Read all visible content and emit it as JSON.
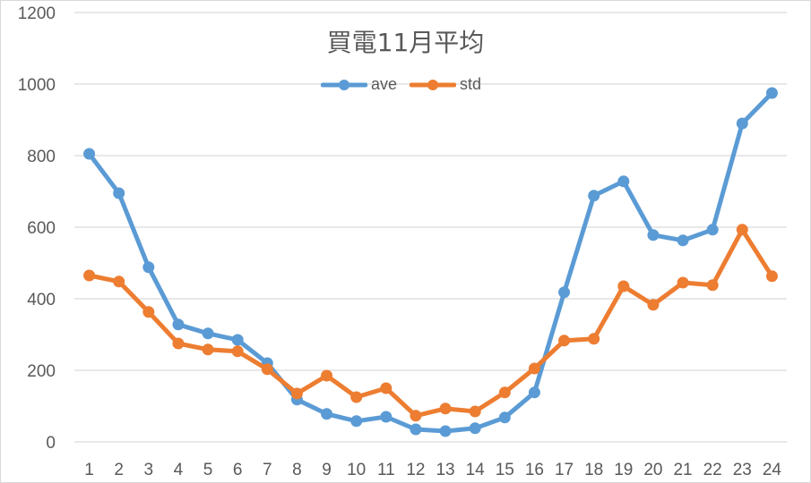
{
  "chart_data": {
    "type": "line",
    "title": "買電11月平均",
    "xlabel": "",
    "ylabel": "",
    "x": [
      1,
      2,
      3,
      4,
      5,
      6,
      7,
      8,
      9,
      10,
      11,
      12,
      13,
      14,
      15,
      16,
      17,
      18,
      19,
      20,
      21,
      22,
      23,
      24
    ],
    "categories": [
      "1",
      "2",
      "3",
      "4",
      "5",
      "6",
      "7",
      "8",
      "9",
      "10",
      "11",
      "12",
      "13",
      "14",
      "15",
      "16",
      "17",
      "18",
      "19",
      "20",
      "21",
      "22",
      "23",
      "24"
    ],
    "series": [
      {
        "name": "ave",
        "color": "#5b9bd5",
        "values": [
          805,
          695,
          488,
          328,
          303,
          285,
          220,
          118,
          78,
          58,
          70,
          35,
          30,
          38,
          68,
          138,
          418,
          688,
          728,
          578,
          563,
          593,
          890,
          975
        ]
      },
      {
        "name": "std",
        "color": "#ed7d31",
        "values": [
          465,
          448,
          363,
          275,
          258,
          253,
          203,
          135,
          185,
          125,
          150,
          73,
          93,
          85,
          138,
          205,
          283,
          288,
          435,
          383,
          445,
          438,
          593,
          463
        ]
      }
    ],
    "ylim": [
      0,
      1200
    ],
    "yticks": [
      0,
      200,
      400,
      600,
      800,
      1000,
      1200
    ],
    "grid": true,
    "legend_position": "top"
  },
  "colors": {
    "grid": "#d9d9d9",
    "text": "#595959",
    "ave": "#5b9bd5",
    "std": "#ed7d31"
  }
}
